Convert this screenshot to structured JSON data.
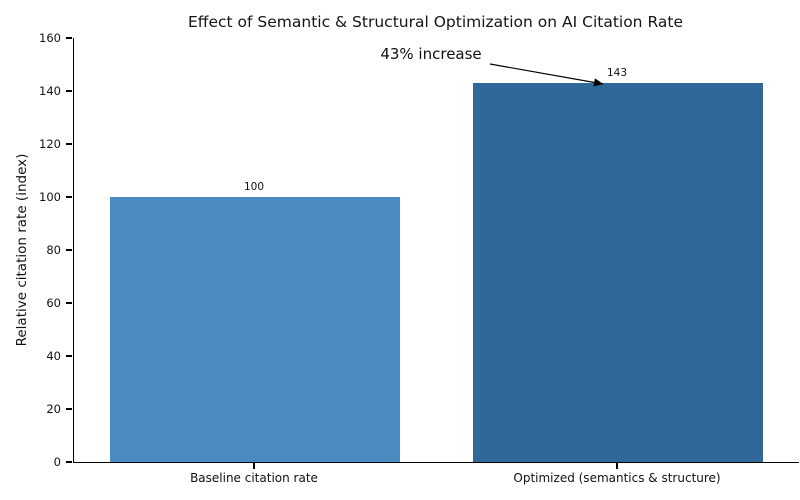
{
  "chart_data": {
    "type": "bar",
    "title": "Effect of Semantic & Structural Optimization on AI Citation Rate",
    "ylabel": "Relative citation rate (index)",
    "xlabel": "",
    "categories": [
      "Baseline citation rate",
      "Optimized (semantics & structure)"
    ],
    "values": [
      100,
      143
    ],
    "value_labels": [
      "100",
      "143"
    ],
    "bar_colors": [
      "#4c8bc2",
      "#31689a"
    ],
    "ylim": [
      0,
      160
    ],
    "yticks": [
      0,
      20,
      40,
      60,
      80,
      100,
      120,
      140,
      160
    ],
    "grid": false,
    "legend_position": "none",
    "annotation": {
      "text": "43% increase"
    }
  }
}
